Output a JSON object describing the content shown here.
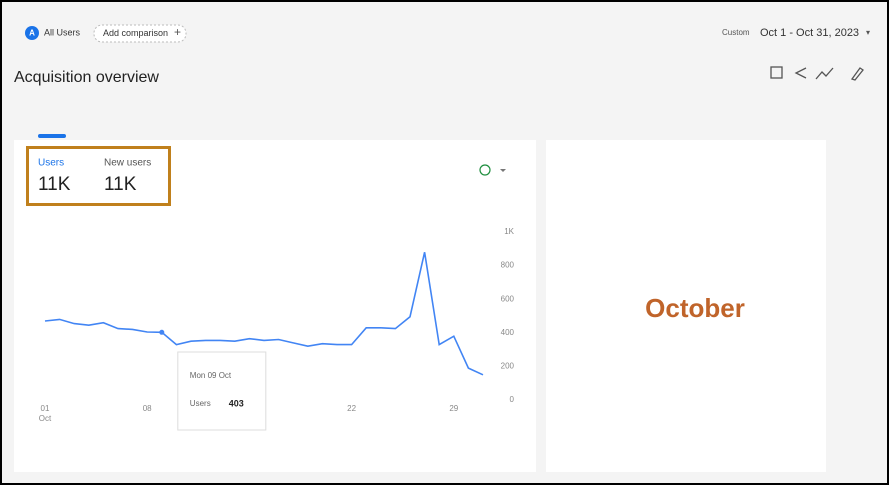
{
  "header": {
    "segment_badge": "A",
    "segment": "All Users",
    "add_comparison": "Add comparison",
    "add_icon": "+",
    "date_mode": "Custom",
    "date_range": "Oct 1 - Oct 31, 2023",
    "date_caret": "▾",
    "title": "Acquisition overview"
  },
  "metrics": [
    {
      "label": "Users",
      "value": "11K"
    },
    {
      "label": "New users",
      "value": "11K"
    }
  ],
  "chart_data": {
    "type": "line",
    "categories": [
      "01",
      null,
      null,
      null,
      null,
      null,
      null,
      "08",
      null,
      null,
      null,
      null,
      null,
      null,
      null,
      null,
      null,
      null,
      null,
      null,
      null,
      "22",
      null,
      null,
      null,
      null,
      null,
      null,
      "29",
      null,
      null
    ],
    "x_sublabel": "Oct",
    "series": [
      {
        "name": "Users",
        "color": "#4285f4",
        "values": [
          470,
          480,
          455,
          445,
          460,
          425,
          420,
          405,
          403,
          330,
          350,
          355,
          355,
          350,
          365,
          355,
          360,
          340,
          320,
          335,
          330,
          330,
          430,
          430,
          425,
          495,
          880,
          330,
          380,
          190,
          150
        ]
      }
    ],
    "ylim": [
      0,
      1000
    ],
    "yticks": [
      0,
      200,
      400,
      600,
      800,
      {
        "value": 1000,
        "label": "1K"
      }
    ],
    "tooltip": {
      "date": "Mon 09 Oct",
      "series": "Users",
      "index": 8
    }
  },
  "side_panel": {
    "label": "October"
  }
}
